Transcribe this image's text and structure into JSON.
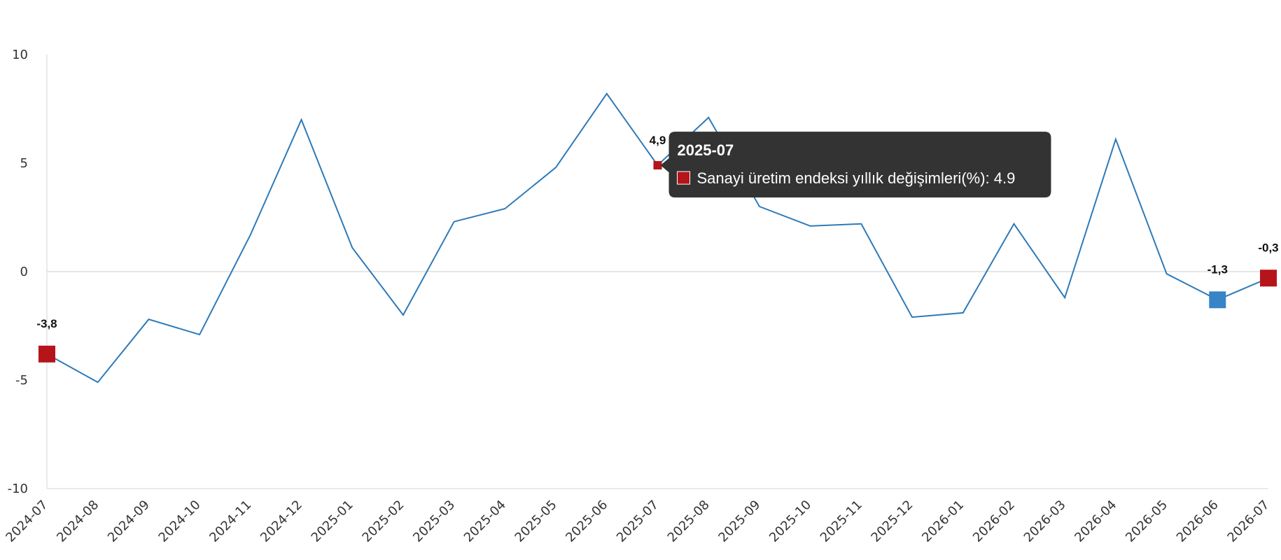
{
  "chart_data": {
    "type": "line",
    "x": [
      "2024-07",
      "2024-08",
      "2024-09",
      "2024-10",
      "2024-11",
      "2024-12",
      "2025-01",
      "2025-02",
      "2025-03",
      "2025-04",
      "2025-05",
      "2025-06",
      "2025-07",
      "2025-08",
      "2025-09",
      "2025-10",
      "2025-11",
      "2025-12",
      "2026-01",
      "2026-02",
      "2026-03",
      "2026-04",
      "2026-05",
      "2026-06",
      "2026-07"
    ],
    "series": [
      {
        "name": "Sanayi üretim endeksi yıllık değişimleri(%)",
        "values": [
          -3.8,
          -5.1,
          -2.2,
          -2.9,
          1.7,
          7.0,
          1.1,
          -2.0,
          2.3,
          2.9,
          4.8,
          8.2,
          4.9,
          7.1,
          3.0,
          2.1,
          2.2,
          -2.1,
          -1.9,
          2.2,
          -1.2,
          6.1,
          -0.1,
          -1.3,
          -0.3
        ]
      }
    ],
    "ylim": [
      -10,
      10
    ],
    "yticks": [
      "10",
      "5",
      "0",
      "-5",
      "-10"
    ],
    "line_color": "#2e7ab8",
    "grid": "zero-line only",
    "markers": [
      {
        "index": 0,
        "label": "-3,8",
        "color": "#b5141b",
        "style": "large"
      },
      {
        "index": 12,
        "label": "4,9",
        "color": "#b5141b",
        "style": "small"
      },
      {
        "index": 23,
        "label": "-1,3",
        "color": "#3784c6",
        "style": "large"
      },
      {
        "index": 24,
        "label": "-0,3",
        "color": "#b5141b",
        "style": "large"
      }
    ],
    "tooltip": {
      "index": 12,
      "title": "2025-07",
      "body": "Sanayi üretim endeksi yıllık değişimleri(%): 4.9",
      "swatch_color": "#b5141b"
    }
  }
}
